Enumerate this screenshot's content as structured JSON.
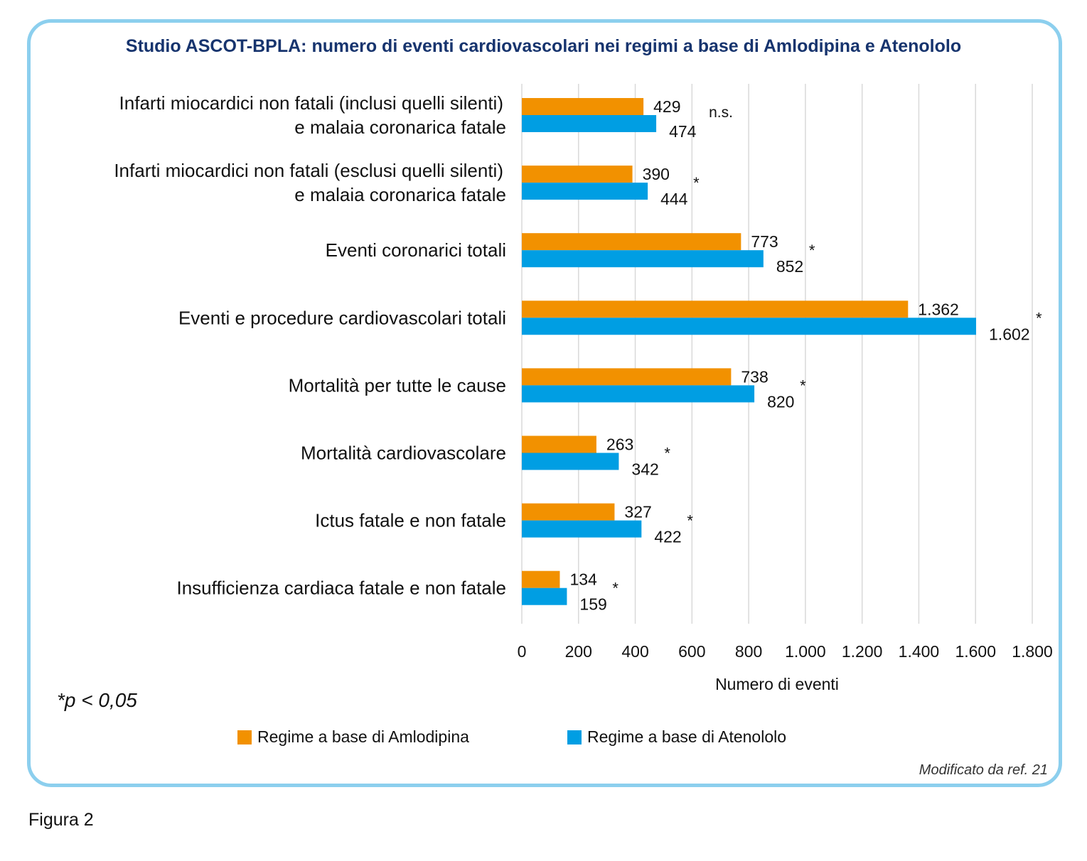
{
  "title": "Studio ASCOT-BPLA: numero di eventi cardiovascolari nei regimi a base di Amlodipina e Atenololo",
  "footnote": "*p < 0,05",
  "source_note": "Modificato da ref. 21",
  "figure_caption": "Figura 2",
  "colors": {
    "amlodipina": "#f29100",
    "atenololo": "#009ee3",
    "frame": "#8ccfee",
    "title": "#17346e",
    "grid": "#d9d9d9"
  },
  "chart_data": {
    "type": "bar",
    "orientation": "horizontal",
    "categories": [
      [
        "Infarti miocardici non fatali (inclusi quelli silenti)",
        "e malaia coronarica fatale"
      ],
      [
        "Infarti miocardici non fatali (esclusi quelli silenti)",
        "e malaia coronarica fatale"
      ],
      [
        "Eventi coronarici totali"
      ],
      [
        "Eventi e procedure cardiovascolari totali"
      ],
      [
        "Mortalità per tutte le cause"
      ],
      [
        "Mortalità cardiovascolare"
      ],
      [
        "Ictus fatale e non fatale"
      ],
      [
        "Insufficienza cardiaca fatale e non fatale"
      ]
    ],
    "series": [
      {
        "name": "Regime a base di Amlodipina",
        "color": "#f29100",
        "values": [
          429,
          390,
          773,
          1362,
          738,
          263,
          327,
          134
        ],
        "labels": [
          "429",
          "390",
          "773",
          "1.362",
          "738",
          "263",
          "327",
          "134"
        ]
      },
      {
        "name": "Regime a base di Atenololo",
        "color": "#009ee3",
        "values": [
          474,
          444,
          852,
          1602,
          820,
          342,
          422,
          159
        ],
        "labels": [
          "474",
          "444",
          "852",
          "1.602",
          "820",
          "342",
          "422",
          "159"
        ]
      }
    ],
    "significance": [
      "n.s.",
      "*",
      "*",
      "*",
      "*",
      "*",
      "*",
      "*"
    ],
    "xlim": [
      0,
      1800
    ],
    "xticks": [
      0,
      200,
      400,
      600,
      800,
      1000,
      1200,
      1400,
      1600,
      1800
    ],
    "xtick_labels": [
      "0",
      "200",
      "400",
      "600",
      "800",
      "1.000",
      "1.200",
      "1.400",
      "1.600",
      "1.800"
    ],
    "xlabel": "Numero di eventi",
    "ylabel": "",
    "grid": "vertical",
    "legend": "bottom"
  }
}
